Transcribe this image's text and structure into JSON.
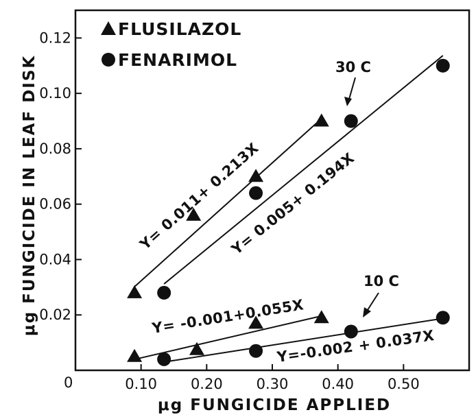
{
  "chart_data": {
    "type": "scatter",
    "xlabel": "μg FUNGICIDE APPLIED",
    "ylabel": "μg FUNGICIDE IN LEAF DISK",
    "xlim": [
      0,
      0.6
    ],
    "ylim": [
      0,
      0.13
    ],
    "x_ticks": [
      0.1,
      0.2,
      0.3,
      0.4,
      0.5
    ],
    "x_tick_labels": [
      "0.10",
      "0.20",
      "0.30",
      "0.40",
      "0.50"
    ],
    "y_ticks": [
      0.02,
      0.04,
      0.06,
      0.08,
      0.1,
      0.12
    ],
    "y_tick_labels": [
      "0.02",
      "0.04",
      "0.06",
      "0.08",
      "0.10",
      "0.12"
    ],
    "origin_label": "0",
    "legend": [
      {
        "label": "FLUSILAZOL",
        "marker": "triangle"
      },
      {
        "label": "FENARIMOL",
        "marker": "circle"
      }
    ],
    "series": [
      {
        "name": "FLUSILAZOL",
        "temperature": "30 C",
        "marker": "triangle",
        "x": [
          0.09,
          0.18,
          0.275,
          0.375
        ],
        "y": [
          0.028,
          0.056,
          0.07,
          0.09
        ]
      },
      {
        "name": "FENARIMOL",
        "temperature": "30 C",
        "marker": "circle",
        "x": [
          0.135,
          0.275,
          0.42,
          0.56
        ],
        "y": [
          0.028,
          0.064,
          0.09,
          0.11
        ]
      },
      {
        "name": "FLUSILAZOL",
        "temperature": "10 C",
        "marker": "triangle",
        "x": [
          0.09,
          0.185,
          0.275,
          0.375
        ],
        "y": [
          0.005,
          0.0075,
          0.017,
          0.019
        ]
      },
      {
        "name": "FENARIMOL",
        "temperature": "10 C",
        "marker": "circle",
        "x": [
          0.135,
          0.275,
          0.42,
          0.56
        ],
        "y": [
          0.004,
          0.007,
          0.014,
          0.019
        ]
      }
    ],
    "regression_lines": [
      {
        "equation": "Y= 0.011+ 0.213X",
        "intercept": 0.011,
        "slope": 0.213,
        "x_range": [
          0.09,
          0.375
        ]
      },
      {
        "equation": "Y= 0.005+ 0.194X",
        "intercept": 0.005,
        "slope": 0.194,
        "x_range": [
          0.135,
          0.56
        ]
      },
      {
        "equation": "Y= -0.001+0.055X",
        "intercept": -0.001,
        "slope": 0.055,
        "x_range": [
          0.09,
          0.375
        ]
      },
      {
        "equation": "Y=-0.002 + 0.037X",
        "intercept": -0.002,
        "slope": 0.037,
        "x_range": [
          0.135,
          0.56
        ]
      }
    ],
    "annotations": [
      {
        "text": "30 C"
      },
      {
        "text": "10 C"
      }
    ]
  }
}
